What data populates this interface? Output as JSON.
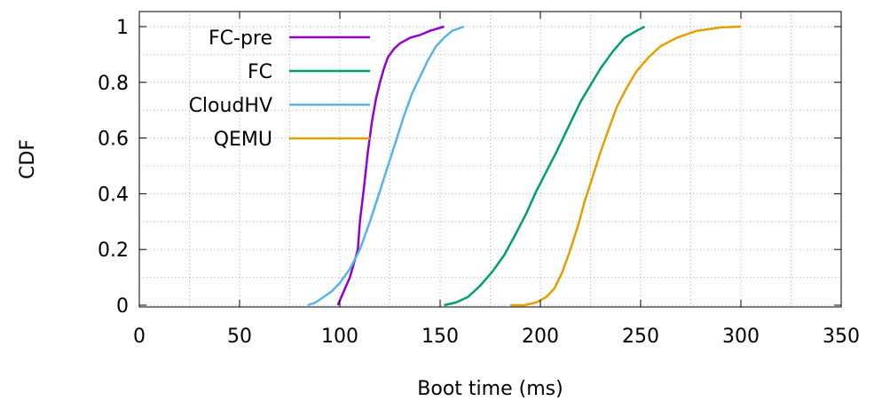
{
  "chart_data": {
    "type": "line",
    "title": "",
    "xlabel": "Boot time (ms)",
    "ylabel": "CDF",
    "xlim": [
      0,
      350
    ],
    "ylim": [
      0,
      1
    ],
    "xticks": [
      "0",
      "50",
      "100",
      "150",
      "200",
      "250",
      "300",
      "350"
    ],
    "yticks": [
      "0",
      "0.2",
      "0.4",
      "0.6",
      "0.8",
      "1"
    ],
    "grid": true,
    "legend_position": "top-left",
    "series": [
      {
        "name": "FC-pre",
        "color": "#9400d3",
        "x": [
          99,
          102,
          105,
          107,
          109,
          110,
          112,
          114,
          116,
          118,
          120,
          122,
          124,
          127,
          130,
          135,
          140,
          145,
          152
        ],
        "y": [
          0.0,
          0.05,
          0.1,
          0.15,
          0.2,
          0.3,
          0.42,
          0.55,
          0.66,
          0.74,
          0.8,
          0.85,
          0.89,
          0.92,
          0.94,
          0.96,
          0.97,
          0.985,
          1.0
        ]
      },
      {
        "name": "FC",
        "color": "#009e73",
        "x": [
          152,
          158,
          164,
          170,
          176,
          182,
          188,
          193,
          198,
          203,
          208,
          212,
          216,
          220,
          225,
          230,
          236,
          242,
          248,
          252
        ],
        "y": [
          0.0,
          0.01,
          0.03,
          0.07,
          0.12,
          0.18,
          0.26,
          0.33,
          0.41,
          0.48,
          0.55,
          0.61,
          0.67,
          0.73,
          0.79,
          0.85,
          0.91,
          0.96,
          0.985,
          1.0
        ]
      },
      {
        "name": "CloudHV",
        "color": "#56b4e9",
        "x": [
          84,
          88,
          92,
          96,
          100,
          105,
          110,
          115,
          120,
          124,
          128,
          132,
          136,
          140,
          144,
          148,
          152,
          156,
          162
        ],
        "y": [
          0.0,
          0.01,
          0.03,
          0.05,
          0.08,
          0.13,
          0.2,
          0.3,
          0.41,
          0.5,
          0.59,
          0.68,
          0.76,
          0.82,
          0.88,
          0.93,
          0.96,
          0.985,
          1.0
        ]
      },
      {
        "name": "QEMU",
        "color": "#e69f00",
        "x": [
          185,
          192,
          198,
          203,
          207,
          211,
          215,
          219,
          222,
          226,
          230,
          234,
          238,
          243,
          248,
          254,
          260,
          268,
          278,
          290,
          300
        ],
        "y": [
          0.0,
          0.0,
          0.01,
          0.03,
          0.06,
          0.12,
          0.2,
          0.29,
          0.37,
          0.46,
          0.55,
          0.63,
          0.71,
          0.78,
          0.84,
          0.89,
          0.93,
          0.96,
          0.985,
          0.997,
          1.0
        ]
      }
    ]
  }
}
